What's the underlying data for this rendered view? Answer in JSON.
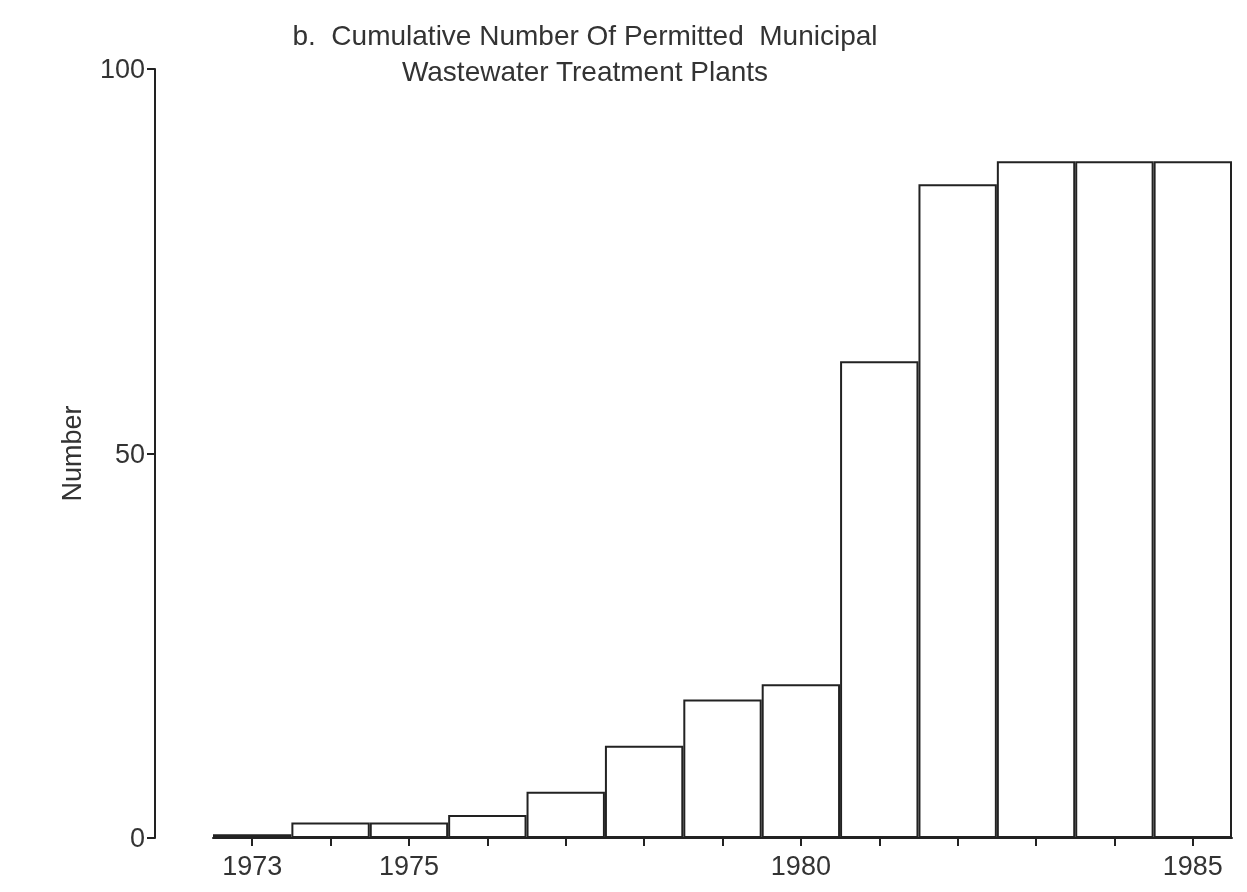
{
  "chart_data": {
    "type": "bar",
    "title": "b.  Cumulative Number Of Permitted  Municipal\nWastewater Treatment Plants",
    "ylabel": "Number",
    "categories": [
      "1973",
      null,
      "1975",
      null,
      null,
      null,
      null,
      "1980",
      null,
      null,
      null,
      null,
      "1985"
    ],
    "values": [
      0.5,
      2,
      2,
      3,
      6,
      12,
      18,
      20,
      62,
      85,
      88,
      88,
      88
    ],
    "color": "#ffffff",
    "ylim": [
      0,
      100
    ],
    "yticks": [
      0,
      50,
      100
    ],
    "grid": false
  }
}
